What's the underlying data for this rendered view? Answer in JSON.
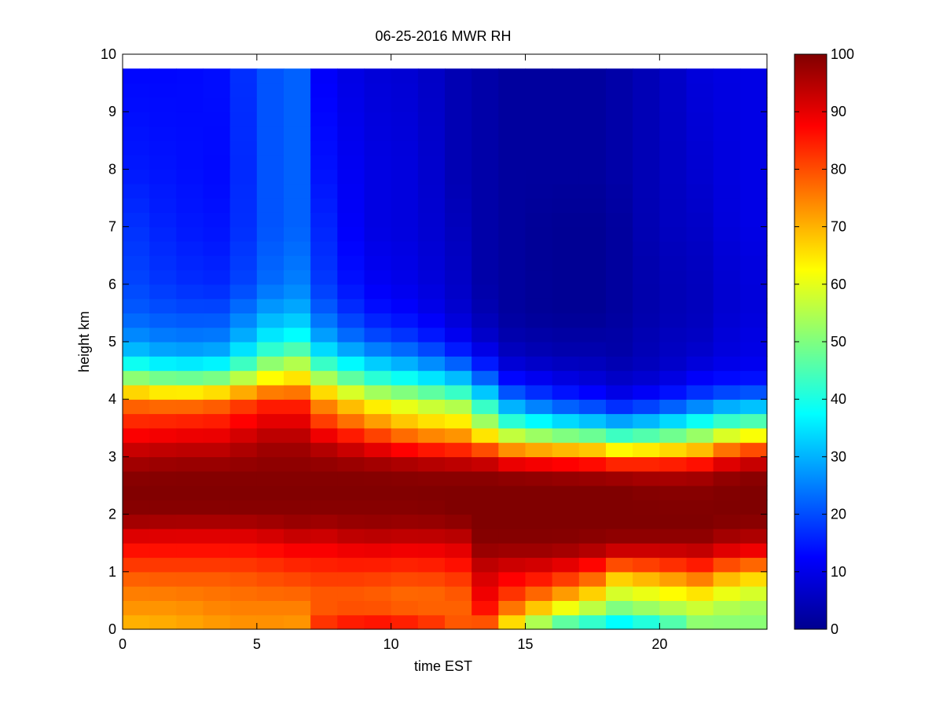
{
  "chart_data": {
    "type": "heatmap",
    "title": "06-25-2016 MWR RH",
    "xlabel": "time EST",
    "ylabel": "height km",
    "xlim": [
      0,
      24
    ],
    "ylim": [
      0,
      10
    ],
    "x_ticks": [
      "0",
      "5",
      "10",
      "15",
      "20"
    ],
    "y_ticks": [
      "0",
      "1",
      "2",
      "3",
      "4",
      "5",
      "6",
      "7",
      "8",
      "9",
      "10"
    ],
    "colorbar": {
      "colormap": "jet",
      "range": [
        0,
        100
      ],
      "ticks": [
        "0",
        "10",
        "20",
        "30",
        "40",
        "50",
        "60",
        "70",
        "80",
        "90",
        "100"
      ]
    },
    "grid": false,
    "x_values": [
      0.5,
      1.5,
      2.5,
      3.5,
      4.5,
      5.5,
      6.5,
      7.5,
      8.5,
      9.5,
      10.5,
      11.5,
      12.5,
      13.5,
      14.5,
      15.5,
      16.5,
      17.5,
      18.5,
      19.5,
      20.5,
      21.5,
      22.5,
      23.5
    ],
    "profile_heights_km": [
      0,
      0.25,
      0.5,
      0.75,
      1.0,
      1.25,
      1.5,
      1.75,
      2.0,
      2.5,
      2.75,
      3.0,
      3.25,
      3.5,
      3.75,
      4.0,
      4.25,
      4.5,
      4.75,
      5.0,
      5.5,
      6.0,
      7.0,
      8.0,
      9.75
    ],
    "profile_times_est": [
      0,
      2,
      4,
      5,
      6.5,
      7.5,
      9,
      11,
      12.5,
      13.5,
      14.5,
      16,
      17.5,
      18.5,
      20,
      21.5,
      23
    ],
    "rh_profiles_percent": [
      [
        68,
        72,
        74,
        76,
        80,
        84,
        88,
        94,
        99,
        100,
        98,
        95,
        90,
        85,
        82,
        75,
        60,
        45,
        35,
        28,
        22,
        20,
        18,
        15,
        13
      ],
      [
        70,
        72,
        74,
        77,
        80,
        84,
        88,
        93,
        99,
        100,
        99,
        96,
        92,
        86,
        82,
        72,
        55,
        40,
        30,
        25,
        20,
        17,
        15,
        14,
        13
      ],
      [
        72,
        74,
        76,
        77,
        80,
        84,
        88,
        93,
        99,
        100,
        99,
        96,
        92,
        87,
        83,
        75,
        58,
        42,
        32,
        26,
        20,
        16,
        14,
        13,
        14
      ],
      [
        73,
        74,
        76,
        78,
        81,
        84,
        88,
        94,
        99,
        100,
        99,
        98,
        96,
        92,
        88,
        82,
        68,
        55,
        45,
        36,
        28,
        22,
        20,
        20,
        20
      ],
      [
        72,
        74,
        76,
        79,
        82,
        86,
        90,
        96,
        99,
        100,
        99,
        98,
        96,
        92,
        88,
        82,
        70,
        60,
        50,
        40,
        30,
        25,
        22,
        22,
        22
      ],
      [
        85,
        80,
        78,
        80,
        83,
        86,
        90,
        95,
        99,
        100,
        99,
        97,
        93,
        85,
        78,
        72,
        60,
        48,
        38,
        30,
        22,
        18,
        16,
        14,
        12
      ],
      [
        90,
        82,
        78,
        80,
        83,
        87,
        92,
        97,
        99,
        100,
        99,
        95,
        88,
        78,
        70,
        62,
        48,
        38,
        30,
        22,
        15,
        12,
        10,
        10,
        9
      ],
      [
        88,
        80,
        76,
        78,
        82,
        86,
        91,
        96,
        99,
        100,
        98,
        92,
        80,
        70,
        62,
        55,
        42,
        32,
        25,
        18,
        12,
        10,
        9,
        9,
        8
      ],
      [
        80,
        78,
        78,
        80,
        84,
        88,
        92,
        97,
        100,
        100,
        98,
        90,
        78,
        68,
        60,
        50,
        36,
        26,
        18,
        12,
        8,
        7,
        6,
        5,
        5
      ],
      [
        75,
        84,
        88,
        90,
        92,
        96,
        99,
        100,
        100,
        100,
        98,
        88,
        72,
        58,
        48,
        38,
        26,
        18,
        12,
        8,
        5,
        4,
        4,
        4,
        4
      ],
      [
        60,
        72,
        80,
        85,
        90,
        95,
        99,
        100,
        100,
        100,
        97,
        82,
        65,
        48,
        35,
        25,
        16,
        10,
        7,
        5,
        3,
        3,
        3,
        3,
        3
      ],
      [
        40,
        58,
        70,
        80,
        88,
        95,
        99,
        100,
        100,
        100,
        96,
        80,
        60,
        42,
        28,
        18,
        12,
        8,
        5,
        4,
        2,
        2,
        2,
        3,
        3
      ],
      [
        35,
        50,
        62,
        72,
        82,
        92,
        98,
        100,
        100,
        100,
        95,
        78,
        58,
        38,
        25,
        15,
        10,
        7,
        5,
        4,
        2,
        2,
        2,
        3,
        3
      ],
      [
        30,
        45,
        55,
        62,
        72,
        88,
        97,
        100,
        100,
        100,
        94,
        74,
        52,
        35,
        22,
        12,
        8,
        6,
        4,
        4,
        3,
        3,
        3,
        4,
        4
      ],
      [
        35,
        50,
        58,
        65,
        76,
        88,
        97,
        100,
        100,
        99,
        93,
        75,
        55,
        38,
        25,
        15,
        10,
        7,
        6,
        6,
        5,
        5,
        6,
        6,
        6
      ],
      [
        48,
        55,
        60,
        70,
        80,
        90,
        97,
        100,
        100,
        99,
        94,
        78,
        60,
        45,
        32,
        20,
        14,
        10,
        8,
        7,
        6,
        6,
        7,
        8,
        9
      ],
      [
        50,
        52,
        55,
        62,
        70,
        85,
        93,
        98,
        100,
        100,
        98,
        88,
        72,
        52,
        38,
        25,
        16,
        12,
        10,
        10,
        9,
        9,
        10,
        10,
        10
      ]
    ]
  }
}
